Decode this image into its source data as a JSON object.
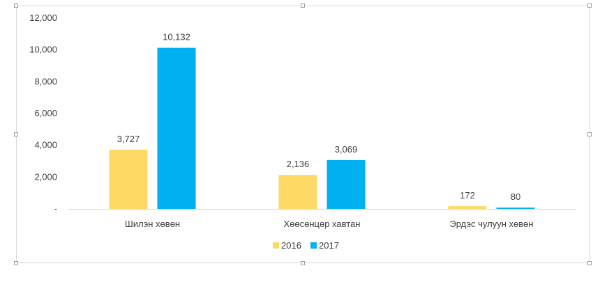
{
  "chart_data": {
    "type": "bar",
    "categories": [
      "Шилэн хөвөн",
      "Хөөсөнцөр хавтан",
      "Эрдэс чулуун хөвөн"
    ],
    "series": [
      {
        "name": "2016",
        "values": [
          3727,
          2136,
          172
        ],
        "color": "#FFD966",
        "labels": [
          "3,727",
          "2,136",
          "172"
        ]
      },
      {
        "name": "2017",
        "values": [
          10132,
          3069,
          80
        ],
        "color": "#00B0F0",
        "labels": [
          "10,132",
          "3,069",
          "80"
        ]
      }
    ],
    "y_ticks": [
      0,
      2000,
      4000,
      6000,
      8000,
      10000,
      12000
    ],
    "y_tick_labels": [
      "-",
      "2,000",
      "4,000",
      "6,000",
      "8,000",
      "10,000",
      "12,000"
    ],
    "ylim": [
      0,
      12000
    ],
    "grid": false,
    "legend_position": "bottom",
    "title": "",
    "xlabel": "",
    "ylabel": ""
  }
}
